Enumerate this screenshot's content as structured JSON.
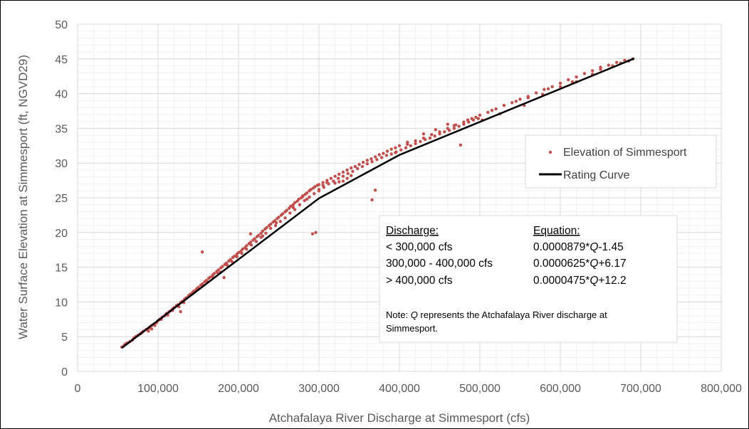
{
  "chart_data": {
    "type": "scatter",
    "xlabel": "Atchafalaya River Discharge at Simmesport (cfs)",
    "ylabel": "Water Surface Elevation at Simmesport (ft, NGVD29)",
    "xlim": [
      0,
      800000
    ],
    "ylim": [
      0,
      50
    ],
    "x_major_ticks": [
      0,
      100000,
      200000,
      300000,
      400000,
      500000,
      600000,
      700000,
      800000
    ],
    "x_tick_labels": [
      "0",
      "100,000",
      "200,000",
      "300,000",
      "400,000",
      "500,000",
      "600,000",
      "700,000",
      "800,000"
    ],
    "y_major_ticks": [
      0,
      5,
      10,
      15,
      20,
      25,
      30,
      35,
      40,
      45,
      50
    ],
    "y_tick_labels": [
      "0",
      "5",
      "10",
      "15",
      "20",
      "25",
      "30",
      "35",
      "40",
      "45",
      "50"
    ],
    "x_minor_step": 20000,
    "y_minor_step": 1,
    "grid": true,
    "legend": {
      "placement": "right",
      "entries": [
        {
          "label": "Elevation of Simmesport",
          "marker": "dot",
          "color": "#c0504d"
        },
        {
          "label": "Rating Curve",
          "marker": "line",
          "color": "#000000"
        }
      ]
    },
    "series": [
      {
        "name": "Elevation of Simmesport",
        "kind": "scatter",
        "color": "#c0504d",
        "points": [
          [
            55000,
            3.5
          ],
          [
            58000,
            3.8
          ],
          [
            60000,
            4.0
          ],
          [
            62000,
            4.1
          ],
          [
            65000,
            4.3
          ],
          [
            68000,
            4.5
          ],
          [
            70000,
            4.8
          ],
          [
            72000,
            5.0
          ],
          [
            75000,
            5.2
          ],
          [
            78000,
            5.4
          ],
          [
            80000,
            5.6
          ],
          [
            82000,
            5.8
          ],
          [
            85000,
            6.0
          ],
          [
            88000,
            6.2
          ],
          [
            90000,
            6.4
          ],
          [
            92000,
            6.6
          ],
          [
            95000,
            6.8
          ],
          [
            98000,
            7.0
          ],
          [
            100000,
            7.3
          ],
          [
            102000,
            7.5
          ],
          [
            105000,
            7.8
          ],
          [
            108000,
            8.0
          ],
          [
            110000,
            8.3
          ],
          [
            113000,
            8.5
          ],
          [
            115000,
            8.7
          ],
          [
            118000,
            9.0
          ],
          [
            120000,
            9.2
          ],
          [
            123000,
            9.5
          ],
          [
            125000,
            9.6
          ],
          [
            128000,
            9.9
          ],
          [
            130000,
            10.1
          ],
          [
            133000,
            10.4
          ],
          [
            135000,
            10.6
          ],
          [
            138000,
            10.9
          ],
          [
            140000,
            11.1
          ],
          [
            143000,
            11.4
          ],
          [
            145000,
            11.6
          ],
          [
            148000,
            11.9
          ],
          [
            150000,
            12.1
          ],
          [
            153000,
            12.4
          ],
          [
            155000,
            12.6
          ],
          [
            158000,
            12.9
          ],
          [
            160000,
            13.1
          ],
          [
            163000,
            13.4
          ],
          [
            165000,
            13.6
          ],
          [
            168000,
            13.9
          ],
          [
            170000,
            14.1
          ],
          [
            173000,
            14.4
          ],
          [
            175000,
            14.6
          ],
          [
            178000,
            14.9
          ],
          [
            180000,
            15.1
          ],
          [
            183000,
            15.4
          ],
          [
            185000,
            15.6
          ],
          [
            188000,
            15.9
          ],
          [
            190000,
            16.1
          ],
          [
            193000,
            16.4
          ],
          [
            195000,
            16.6
          ],
          [
            198000,
            16.9
          ],
          [
            200000,
            17.1
          ],
          [
            203000,
            17.3
          ],
          [
            205000,
            17.6
          ],
          [
            208000,
            17.8
          ],
          [
            210000,
            18.1
          ],
          [
            213000,
            18.4
          ],
          [
            215000,
            18.6
          ],
          [
            218000,
            18.9
          ],
          [
            220000,
            19.1
          ],
          [
            223000,
            19.4
          ],
          [
            225000,
            19.6
          ],
          [
            228000,
            19.9
          ],
          [
            230000,
            20.2
          ],
          [
            233000,
            20.5
          ],
          [
            235000,
            20.7
          ],
          [
            238000,
            21.0
          ],
          [
            240000,
            21.2
          ],
          [
            243000,
            21.5
          ],
          [
            245000,
            21.7
          ],
          [
            248000,
            22.0
          ],
          [
            250000,
            22.2
          ],
          [
            253000,
            22.5
          ],
          [
            255000,
            22.7
          ],
          [
            258000,
            23.0
          ],
          [
            260000,
            23.2
          ],
          [
            263000,
            23.5
          ],
          [
            265000,
            23.8
          ],
          [
            268000,
            24.0
          ],
          [
            270000,
            24.3
          ],
          [
            273000,
            24.5
          ],
          [
            275000,
            24.8
          ],
          [
            278000,
            25.0
          ],
          [
            280000,
            25.2
          ],
          [
            283000,
            25.5
          ],
          [
            285000,
            25.7
          ],
          [
            288000,
            26.0
          ],
          [
            290000,
            26.2
          ],
          [
            293000,
            26.4
          ],
          [
            295000,
            26.6
          ],
          [
            298000,
            26.8
          ],
          [
            300000,
            26.9
          ],
          [
            305000,
            27.2
          ],
          [
            310000,
            27.5
          ],
          [
            315000,
            27.8
          ],
          [
            320000,
            28.1
          ],
          [
            325000,
            28.4
          ],
          [
            330000,
            28.7
          ],
          [
            335000,
            29.0
          ],
          [
            340000,
            29.3
          ],
          [
            345000,
            29.5
          ],
          [
            350000,
            29.8
          ],
          [
            355000,
            30.1
          ],
          [
            360000,
            30.4
          ],
          [
            365000,
            30.6
          ],
          [
            370000,
            30.9
          ],
          [
            375000,
            31.2
          ],
          [
            380000,
            31.4
          ],
          [
            385000,
            31.7
          ],
          [
            390000,
            32.0
          ],
          [
            395000,
            32.2
          ],
          [
            400000,
            32.5
          ],
          [
            410000,
            32.7
          ],
          [
            420000,
            33.2
          ],
          [
            430000,
            33.6
          ],
          [
            440000,
            34.1
          ],
          [
            450000,
            34.5
          ],
          [
            460000,
            35.0
          ],
          [
            470000,
            35.5
          ],
          [
            480000,
            35.9
          ],
          [
            490000,
            36.4
          ],
          [
            500000,
            36.9
          ],
          [
            510000,
            37.3
          ],
          [
            520000,
            37.8
          ],
          [
            530000,
            38.3
          ],
          [
            540000,
            38.7
          ],
          [
            550000,
            39.2
          ],
          [
            560000,
            39.6
          ],
          [
            570000,
            40.1
          ],
          [
            580000,
            40.6
          ],
          [
            590000,
            41.0
          ],
          [
            600000,
            41.5
          ],
          [
            610000,
            42.0
          ],
          [
            620000,
            42.4
          ],
          [
            630000,
            42.9
          ],
          [
            640000,
            43.3
          ],
          [
            650000,
            43.8
          ],
          [
            660000,
            44.1
          ],
          [
            670000,
            44.5
          ],
          [
            680000,
            44.8
          ],
          [
            690000,
            45.0
          ],
          [
            155000,
            17.2
          ],
          [
            215000,
            19.8
          ],
          [
            230000,
            19.5
          ],
          [
            247000,
            21.4
          ],
          [
            268000,
            23.6
          ],
          [
            280000,
            25.3
          ],
          [
            285000,
            24.8
          ],
          [
            292000,
            19.8
          ],
          [
            296000,
            20.0
          ],
          [
            300000,
            26.2
          ],
          [
            305000,
            26.8
          ],
          [
            310000,
            27.2
          ],
          [
            320000,
            27.1
          ],
          [
            325000,
            27.3
          ],
          [
            330000,
            27.4
          ],
          [
            335000,
            27.8
          ],
          [
            340000,
            28.2
          ],
          [
            366000,
            24.7
          ],
          [
            370000,
            26.1
          ],
          [
            395000,
            31.5
          ],
          [
            410000,
            33.0
          ],
          [
            430000,
            34.2
          ],
          [
            445000,
            34.8
          ],
          [
            460000,
            35.6
          ],
          [
            468000,
            35.4
          ],
          [
            476000,
            32.6
          ],
          [
            485000,
            36.2
          ],
          [
            495000,
            36.6
          ],
          [
            515000,
            37.6
          ],
          [
            545000,
            38.9
          ],
          [
            560000,
            39.4
          ],
          [
            585000,
            40.7
          ],
          [
            620000,
            41.7
          ],
          [
            650000,
            43.5
          ],
          [
            675000,
            44.4
          ],
          [
            88000,
            5.8
          ],
          [
            92000,
            6.1
          ],
          [
            96000,
            6.6
          ],
          [
            104000,
            7.5
          ],
          [
            112000,
            8.1
          ],
          [
            118000,
            8.8
          ],
          [
            126000,
            9.3
          ],
          [
            132000,
            9.9
          ],
          [
            128000,
            8.6
          ],
          [
            142000,
            11.2
          ],
          [
            148000,
            11.7
          ],
          [
            156000,
            12.4
          ],
          [
            162000,
            12.9
          ],
          [
            168000,
            13.6
          ],
          [
            174000,
            14.2
          ],
          [
            178000,
            14.3
          ],
          [
            182000,
            13.5
          ],
          [
            186000,
            15.3
          ],
          [
            192000,
            15.8
          ],
          [
            198000,
            16.5
          ],
          [
            204000,
            17.0
          ],
          [
            210000,
            17.6
          ],
          [
            216000,
            18.2
          ],
          [
            222000,
            18.7
          ],
          [
            228000,
            19.3
          ],
          [
            234000,
            19.9
          ],
          [
            240000,
            20.6
          ],
          [
            246000,
            21.0
          ],
          [
            252000,
            21.6
          ],
          [
            258000,
            22.1
          ],
          [
            264000,
            22.8
          ],
          [
            270000,
            23.3
          ],
          [
            276000,
            24.0
          ],
          [
            282000,
            24.6
          ],
          [
            288000,
            25.1
          ],
          [
            294000,
            25.6
          ],
          [
            300000,
            26.0
          ],
          [
            306000,
            26.5
          ],
          [
            312000,
            27.0
          ],
          [
            318000,
            27.4
          ],
          [
            324000,
            27.8
          ],
          [
            330000,
            28.1
          ],
          [
            336000,
            28.5
          ],
          [
            342000,
            28.8
          ],
          [
            348000,
            29.2
          ],
          [
            354000,
            29.5
          ],
          [
            360000,
            29.9
          ],
          [
            366000,
            30.2
          ],
          [
            372000,
            30.5
          ],
          [
            378000,
            30.8
          ],
          [
            384000,
            31.1
          ],
          [
            390000,
            31.3
          ],
          [
            396000,
            31.6
          ],
          [
            402000,
            31.9
          ],
          [
            408000,
            32.2
          ],
          [
            414000,
            32.5
          ],
          [
            420000,
            32.8
          ],
          [
            426000,
            33.1
          ],
          [
            432000,
            33.4
          ],
          [
            438000,
            33.6
          ],
          [
            444000,
            33.9
          ],
          [
            450000,
            34.2
          ],
          [
            456000,
            34.5
          ],
          [
            462000,
            34.7
          ],
          [
            468000,
            35.0
          ],
          [
            474000,
            35.3
          ],
          [
            480000,
            35.6
          ],
          [
            486000,
            35.9
          ],
          [
            492000,
            36.2
          ],
          [
            498000,
            36.4
          ],
          [
            503000,
            36.2
          ],
          [
            525000,
            37.1
          ],
          [
            555000,
            38.3
          ],
          [
            578000,
            39.9
          ],
          [
            600000,
            41.0
          ],
          [
            615000,
            41.7
          ],
          [
            640000,
            42.8
          ],
          [
            665000,
            44.0
          ],
          [
            685000,
            44.7
          ]
        ]
      },
      {
        "name": "Rating Curve",
        "kind": "line",
        "color": "#000000",
        "points": [
          [
            55000,
            3.38
          ],
          [
            300000,
            24.92
          ],
          [
            400000,
            31.17
          ],
          [
            692000,
            45.07
          ]
        ]
      }
    ],
    "annotation": {
      "header_left": "Discharge:",
      "header_right": "Equation:",
      "rows": [
        {
          "range": "< 300,000 cfs",
          "equation_pre": "0.0000879*",
          "equation_var": "Q",
          "equation_post": "-1.45"
        },
        {
          "range": "300,000 - 400,000 cfs",
          "equation_pre": "0.0000625*",
          "equation_var": "Q",
          "equation_post": "+6.17"
        },
        {
          "range": "> 400,000 cfs",
          "equation_pre": "0.0000475*",
          "equation_var": "Q",
          "equation_post": "+12.2"
        }
      ],
      "note_pre": "Note: ",
      "note_var": "Q",
      "note_line1_post": " represents the Atchafalaya River discharge at",
      "note_line2": "Simmesport."
    }
  }
}
